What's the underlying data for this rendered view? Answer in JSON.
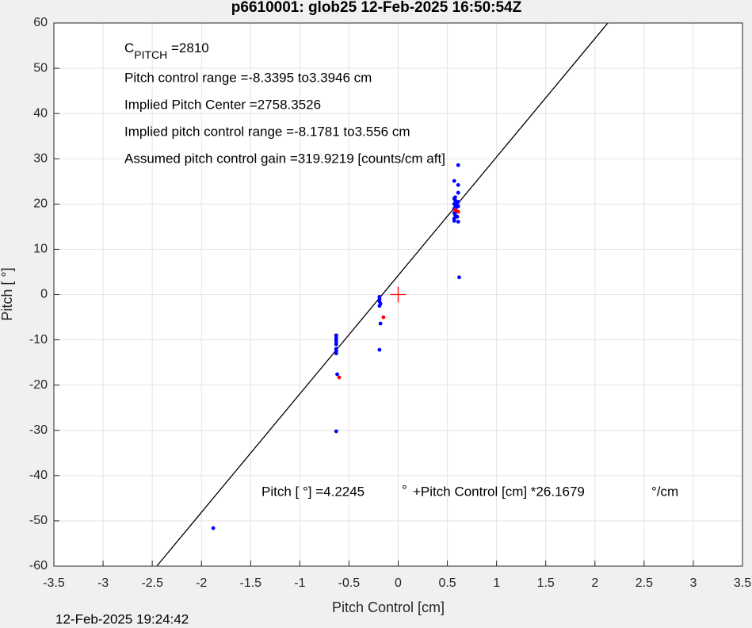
{
  "chart_data": {
    "type": "scatter",
    "title": "p6610001: glob25 12-Feb-2025 16:50:54Z",
    "xlabel": "Pitch Control [cm]",
    "ylabel": "Pitch [ °]",
    "timestamp": "12-Feb-2025 19:24:42",
    "xlim": [
      -3.5,
      3.5
    ],
    "ylim": [
      -60,
      60
    ],
    "xticks": [
      -3.5,
      -3,
      -2.5,
      -2,
      -1.5,
      -1,
      -0.5,
      0,
      0.5,
      1,
      1.5,
      2,
      2.5,
      3,
      3.5
    ],
    "yticks": [
      -60,
      -50,
      -40,
      -30,
      -20,
      -10,
      0,
      10,
      20,
      30,
      40,
      50,
      60
    ],
    "grid": true,
    "fit": {
      "intercept": 4.2245,
      "slope": 26.1679,
      "color": "#000000"
    },
    "series": [
      {
        "color": "#0000ff",
        "marker": "dot",
        "x": [
          0.57,
          0.58,
          0.57,
          0.59,
          0.58,
          0.57,
          0.59,
          0.58,
          0.57,
          0.6,
          0.58,
          0.57,
          0.58,
          0.6,
          0.59,
          0.61,
          0.61,
          0.57,
          0.57,
          0.61,
          0.61,
          0.61,
          0.61,
          0.62,
          -0.19,
          -0.19,
          -0.19,
          -0.18,
          -0.19,
          -0.18,
          -0.19,
          -0.63,
          -0.63,
          -0.63,
          -0.63,
          -0.63,
          -0.63,
          -0.63,
          -0.63,
          -0.62,
          -0.63,
          -1.88
        ],
        "values": [
          16.8,
          17.5,
          18,
          18.3,
          18.7,
          19,
          19.3,
          19.7,
          20,
          20.3,
          20.8,
          21.2,
          21.5,
          17.2,
          18.5,
          19.5,
          20.5,
          16.3,
          25.1,
          28.6,
          24.2,
          22.5,
          16.1,
          3.8,
          -0.5,
          -1,
          -1.5,
          -2,
          -2.5,
          -6.4,
          -12.2,
          -9,
          -9.5,
          -10,
          -10.5,
          -11,
          -12,
          -12.5,
          -13,
          -17.6,
          -30.2,
          -51.6
        ]
      },
      {
        "color": "#ff0000",
        "marker": "dot",
        "x": [
          0.61,
          0.58,
          -0.15,
          -0.6
        ],
        "values": [
          18.3,
          18.7,
          -5,
          -18.3
        ]
      },
      {
        "color": "#ff0000",
        "marker": "plus",
        "x": [
          0
        ],
        "values": [
          0
        ]
      }
    ],
    "annotations": [
      {
        "text": "C",
        "sub": "PITCH",
        "after": " =2810"
      },
      {
        "text": "Pitch control range =-8.3395 to3.3946 cm"
      },
      {
        "text": "Implied Pitch Center =2758.3526"
      },
      {
        "text": "Implied pitch control range =-8.1781 to3.556 cm"
      },
      {
        "text": "Assumed pitch control gain =319.9219 [counts/cm aft]"
      }
    ],
    "equation": [
      "Pitch [  °] =4.2245",
      "°",
      "+Pitch Control [cm] *26.1679",
      "°/cm"
    ]
  }
}
